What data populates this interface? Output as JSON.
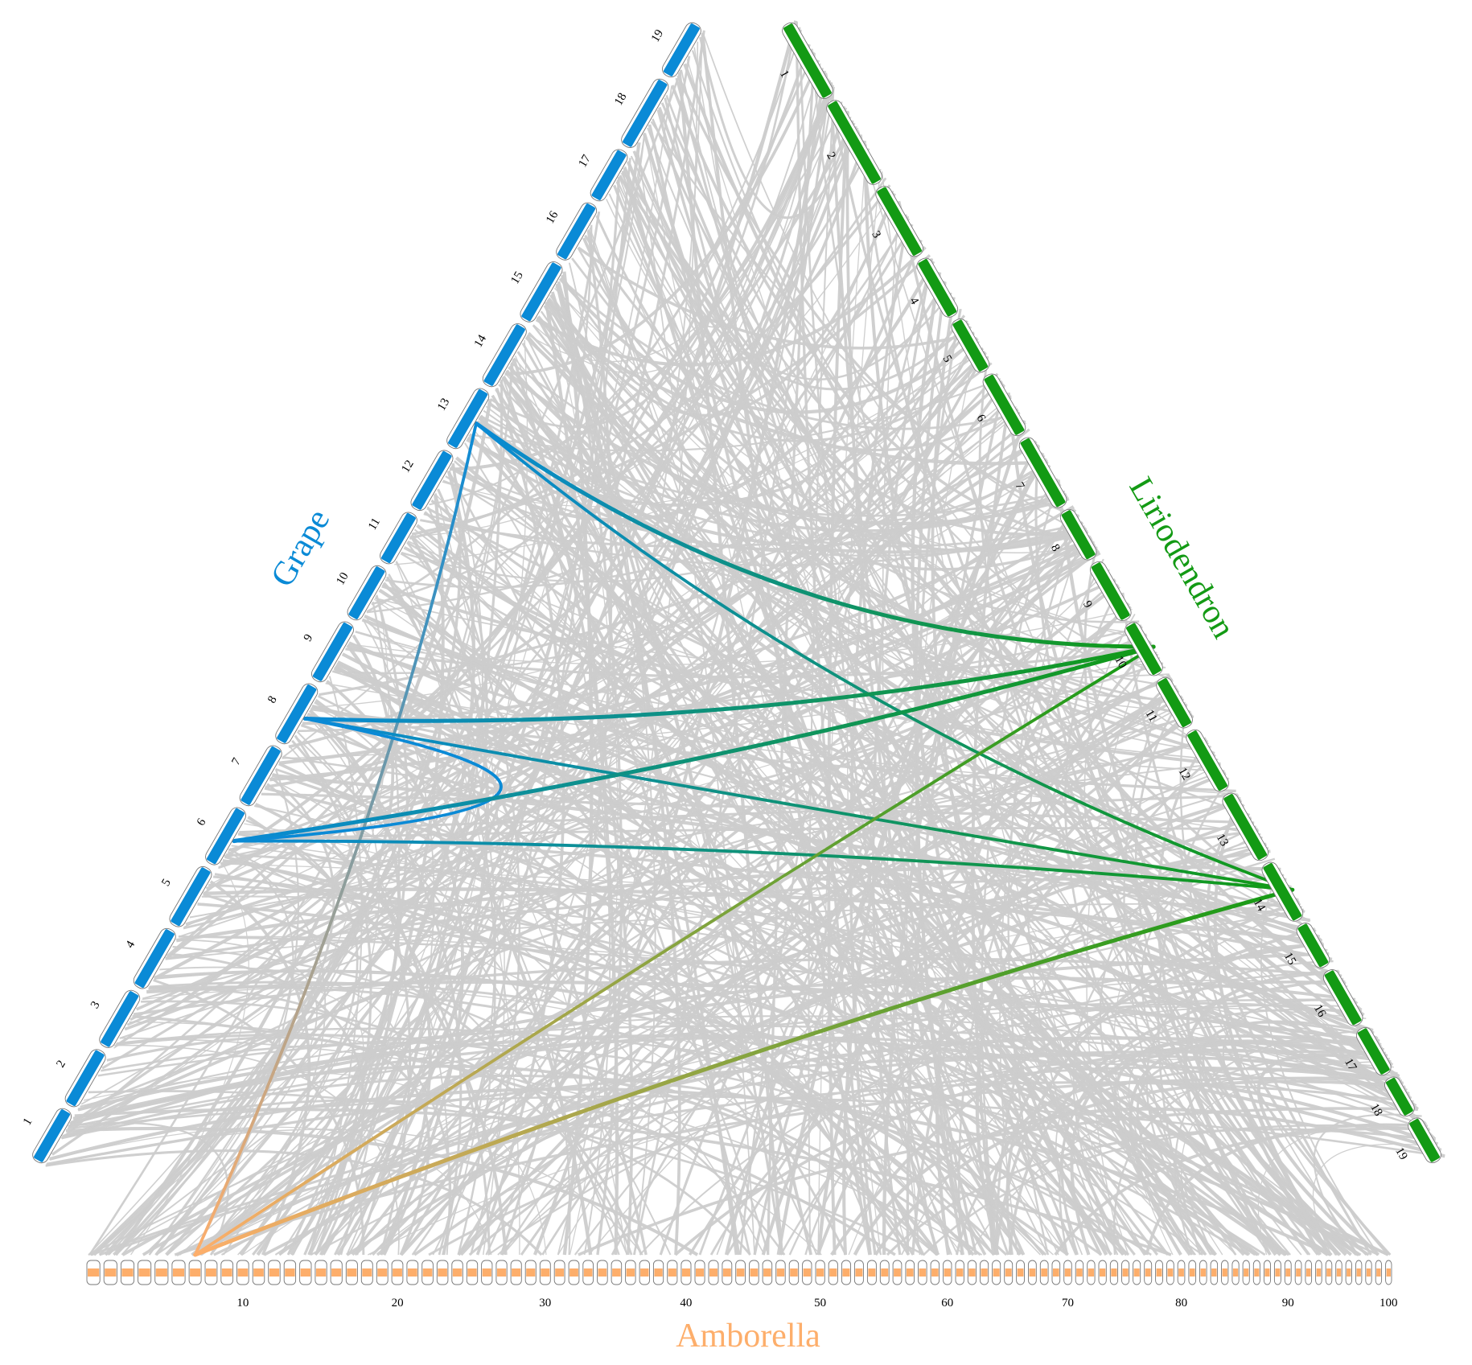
{
  "species": {
    "grape": {
      "name": "Grape",
      "color": "#0A8AD6",
      "chromosomes": [
        "1",
        "2",
        "3",
        "4",
        "5",
        "6",
        "7",
        "8",
        "9",
        "10",
        "11",
        "12",
        "13",
        "14",
        "15",
        "16",
        "17",
        "18",
        "19"
      ]
    },
    "liriodendron": {
      "name": "Liriodendron",
      "color": "#139A14",
      "chromosomes": [
        "1",
        "2",
        "3",
        "4",
        "5",
        "6",
        "7",
        "8",
        "9",
        "10",
        "11",
        "12",
        "13",
        "14",
        "15",
        "16",
        "17",
        "18",
        "19"
      ]
    },
    "amborella": {
      "name": "Amborella",
      "color": "#FDAE6B",
      "scaffold_count": 100,
      "tick_labels": [
        "10",
        "20",
        "30",
        "40",
        "50",
        "60",
        "70",
        "80",
        "90",
        "100"
      ]
    }
  },
  "colors": {
    "background_links": "#CCCCCC"
  },
  "highlighted_links": [
    {
      "from": "grape-13",
      "to": "liriodendron-10"
    },
    {
      "from": "grape-13",
      "to": "liriodendron-14"
    },
    {
      "from": "grape-13",
      "to": "amborella-7"
    },
    {
      "from": "grape-8",
      "to": "liriodendron-10"
    },
    {
      "from": "grape-8",
      "to": "liriodendron-14"
    },
    {
      "from": "grape-8",
      "to": "grape-6"
    },
    {
      "from": "grape-6",
      "to": "liriodendron-10"
    },
    {
      "from": "grape-6",
      "to": "liriodendron-14"
    },
    {
      "from": "liriodendron-10",
      "to": "amborella-7"
    },
    {
      "from": "liriodendron-14",
      "to": "amborella-7"
    }
  ]
}
